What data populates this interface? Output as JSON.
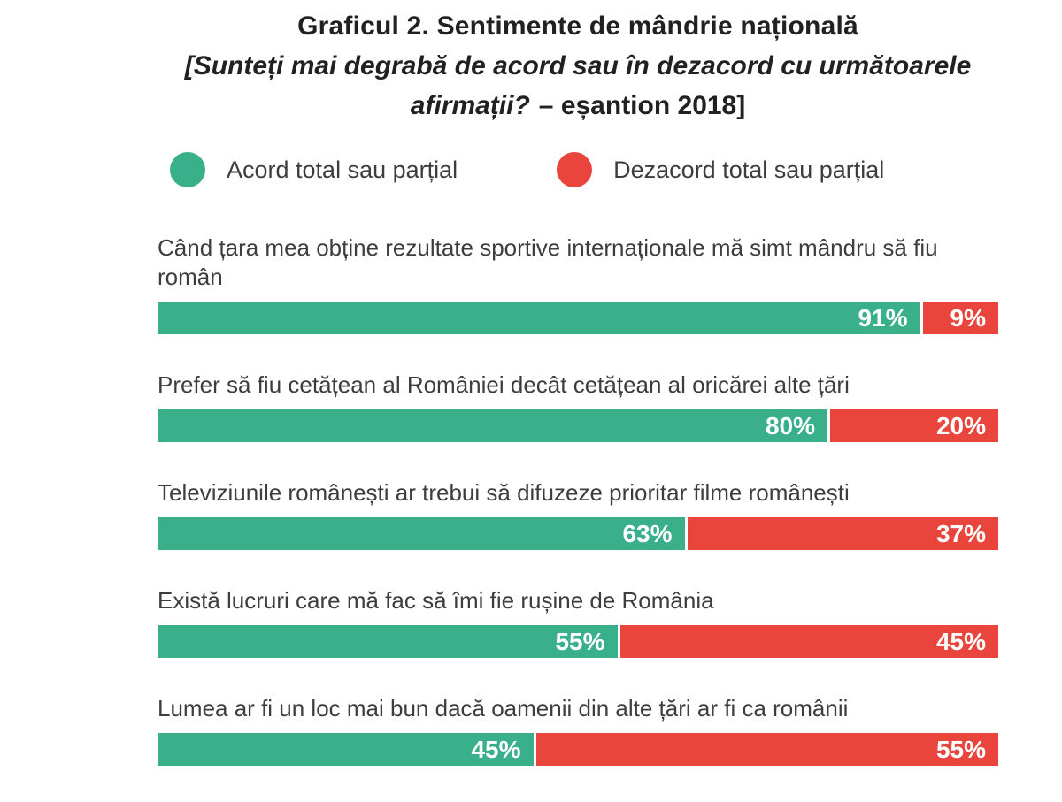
{
  "title": "Graficul 2. Sentimente de mândrie națională",
  "subtitle": {
    "question": "[Sunteți mai degrabă de acord sau în dezacord cu următoarele afirmații?",
    "sample": "– eșantion 2018]"
  },
  "legend": {
    "agree_label": "Acord total sau parțial",
    "disagree_label": "Dezacord total sau parțial"
  },
  "colors": {
    "agree": "#3ab08a",
    "disagree": "#e9453d",
    "title_text": "#212121",
    "label_text": "#3d3d3d",
    "value_text": "#ffffff",
    "background": "#ffffff"
  },
  "chart_data": {
    "type": "bar",
    "orientation": "horizontal-stacked",
    "title": "Graficul 2. Sentimente de mândrie națională",
    "subtitle": "[Sunteți mai degrabă de acord sau în dezacord cu următoarele afirmații? – eșantion 2018]",
    "unit": "%",
    "xlim": [
      0,
      100
    ],
    "grid": false,
    "legend_position": "top",
    "value_label_suffix": "%",
    "categories": [
      "Când țara mea obține rezultate sportive internaționale mă simt mândru să fiu român",
      "Prefer să fiu cetățean al României decât cetățean al oricărei alte țări",
      "Televiziunile românești ar trebui să difuzeze prioritar filme românești",
      "Există lucruri care mă fac să îmi fie rușine de România",
      "Lumea ar fi un loc mai bun dacă oamenii din alte țări ar fi ca românii"
    ],
    "series": [
      {
        "name": "Acord total sau parțial",
        "color": "#3ab08a",
        "values": [
          91,
          80,
          63,
          55,
          45
        ]
      },
      {
        "name": "Dezacord total sau parțial",
        "color": "#e9453d",
        "values": [
          9,
          20,
          37,
          45,
          55
        ]
      }
    ]
  }
}
